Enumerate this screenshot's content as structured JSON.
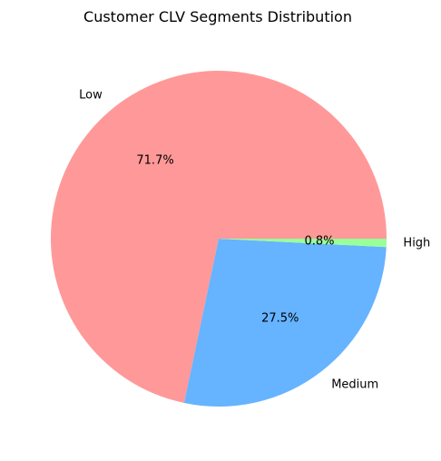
{
  "chart_data": {
    "type": "pie",
    "title": "Customer CLV Segments Distribution",
    "categories": [
      "Low",
      "Medium",
      "High"
    ],
    "values": [
      71.7,
      27.5,
      0.8
    ],
    "value_labels": [
      "71.7%",
      "27.5%",
      "0.8%"
    ],
    "colors": [
      "#ff9999",
      "#66b3ff",
      "#99ff99"
    ],
    "start_angle_deg": 0,
    "direction": "counterclockwise",
    "legend": "none"
  }
}
